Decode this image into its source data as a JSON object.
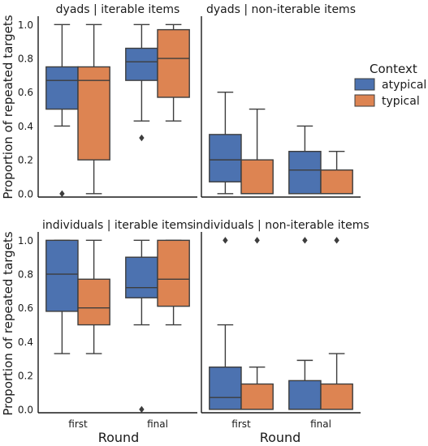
{
  "chart_data": {
    "type": "box",
    "ylabel": "Proportion of repeated targets",
    "xlabel": "Round",
    "categories": [
      "first",
      "final"
    ],
    "hue": [
      "atypical",
      "typical"
    ],
    "yticks": [
      0.0,
      0.2,
      0.4,
      0.6,
      0.8,
      1.0
    ],
    "ytick_labels": [
      "0.0",
      "0.2",
      "0.4",
      "0.6",
      "0.8",
      "1.0"
    ],
    "ylim": [
      -0.02,
      1.04
    ],
    "legend": {
      "title": "Context",
      "position": "right",
      "entries": [
        "atypical",
        "typical"
      ]
    },
    "colors": {
      "atypical": "#4c72b0",
      "typical": "#dd8452",
      "line": "#3d3d3d"
    },
    "panels": [
      {
        "title": "dyads | iterable items",
        "boxes": [
          {
            "round": "first",
            "hue": "atypical",
            "whislo": 0.4,
            "q1": 0.5,
            "med": 0.67,
            "q3": 0.75,
            "whishi": 1.0,
            "fliers": [
              0.0
            ]
          },
          {
            "round": "first",
            "hue": "typical",
            "whislo": 0.0,
            "q1": 0.2,
            "med": 0.67,
            "q3": 0.75,
            "whishi": 1.0,
            "fliers": []
          },
          {
            "round": "final",
            "hue": "atypical",
            "whislo": 0.43,
            "q1": 0.67,
            "med": 0.78,
            "q3": 0.86,
            "whishi": 1.0,
            "fliers": [
              0.33
            ]
          },
          {
            "round": "final",
            "hue": "typical",
            "whislo": 0.43,
            "q1": 0.57,
            "med": 0.8,
            "q3": 0.97,
            "whishi": 1.0,
            "fliers": []
          }
        ]
      },
      {
        "title": "dyads | non-iterable items",
        "boxes": [
          {
            "round": "first",
            "hue": "atypical",
            "whislo": 0.0,
            "q1": 0.07,
            "med": 0.2,
            "q3": 0.35,
            "whishi": 0.6,
            "fliers": []
          },
          {
            "round": "first",
            "hue": "typical",
            "whislo": 0.0,
            "q1": 0.0,
            "med": 0.0,
            "q3": 0.2,
            "whishi": 0.5,
            "fliers": []
          },
          {
            "round": "final",
            "hue": "atypical",
            "whislo": 0.0,
            "q1": 0.0,
            "med": 0.14,
            "q3": 0.25,
            "whishi": 0.4,
            "fliers": []
          },
          {
            "round": "final",
            "hue": "typical",
            "whislo": 0.0,
            "q1": 0.0,
            "med": 0.0,
            "q3": 0.14,
            "whishi": 0.25,
            "fliers": []
          }
        ]
      },
      {
        "title": "individuals | iterable items",
        "boxes": [
          {
            "round": "first",
            "hue": "atypical",
            "whislo": 0.33,
            "q1": 0.58,
            "med": 0.8,
            "q3": 1.0,
            "whishi": 1.0,
            "fliers": []
          },
          {
            "round": "first",
            "hue": "typical",
            "whislo": 0.33,
            "q1": 0.5,
            "med": 0.6,
            "q3": 0.77,
            "whishi": 1.0,
            "fliers": []
          },
          {
            "round": "final",
            "hue": "atypical",
            "whislo": 0.5,
            "q1": 0.66,
            "med": 0.72,
            "q3": 0.9,
            "whishi": 1.0,
            "fliers": [
              0.0
            ]
          },
          {
            "round": "final",
            "hue": "typical",
            "whislo": 0.5,
            "q1": 0.61,
            "med": 0.77,
            "q3": 1.0,
            "whishi": 1.0,
            "fliers": []
          }
        ]
      },
      {
        "title": "individuals | non-iterable items",
        "boxes": [
          {
            "round": "first",
            "hue": "atypical",
            "whislo": 0.0,
            "q1": 0.0,
            "med": 0.07,
            "q3": 0.25,
            "whishi": 0.5,
            "fliers": [
              1.0
            ]
          },
          {
            "round": "first",
            "hue": "typical",
            "whislo": 0.0,
            "q1": 0.0,
            "med": 0.0,
            "q3": 0.15,
            "whishi": 0.25,
            "fliers": [
              1.0
            ]
          },
          {
            "round": "final",
            "hue": "atypical",
            "whislo": 0.0,
            "q1": 0.0,
            "med": 0.0,
            "q3": 0.17,
            "whishi": 0.29,
            "fliers": [
              1.0
            ]
          },
          {
            "round": "final",
            "hue": "typical",
            "whislo": 0.0,
            "q1": 0.0,
            "med": 0.0,
            "q3": 0.15,
            "whishi": 0.33,
            "fliers": [
              1.0
            ]
          }
        ]
      }
    ]
  }
}
